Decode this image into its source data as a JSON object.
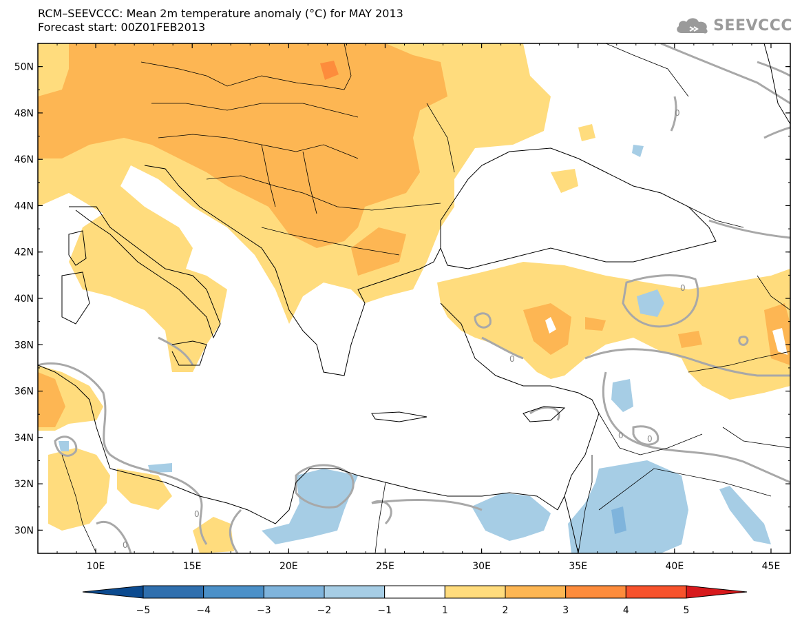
{
  "title": {
    "line1": "RCM–SEEVCCC: Mean 2m temperature anomaly (°C) for MAY 2013",
    "line2": "Forecast start: 00Z01FEB2013"
  },
  "logo": {
    "text": "SEEVCCC",
    "icon": "cloud-icon"
  },
  "map": {
    "lon_range": [
      7,
      46
    ],
    "lat_range": [
      29,
      51
    ],
    "lon_ticks": [
      "10E",
      "15E",
      "20E",
      "25E",
      "30E",
      "35E",
      "40E",
      "45E"
    ],
    "lat_ticks": [
      "50N",
      "48N",
      "46N",
      "44N",
      "42N",
      "40N",
      "38N",
      "36N",
      "34N",
      "32N",
      "30N"
    ],
    "contour_label": "0"
  },
  "colorbar": {
    "labels": [
      "−5",
      "−4",
      "−3",
      "−2",
      "−1",
      "1",
      "2",
      "3",
      "4",
      "5"
    ],
    "colors": [
      "#0b4a8f",
      "#2f6fae",
      "#4b90c8",
      "#7fb4dc",
      "#a6cde5",
      "#ffffff",
      "#ffdc7d",
      "#fdb653",
      "#fd8c3c",
      "#f7522c",
      "#d7191c"
    ]
  },
  "colors": {
    "anomaly_1_2": "#ffdc7d",
    "anomaly_2_3": "#fdb653",
    "anomaly_3_4": "#fd8c3c",
    "anomaly_neg1_neg2": "#a6cde5",
    "anomaly_neg2_neg3": "#7fb4dc",
    "contour": "#a8a8a8",
    "coast": "#000000"
  }
}
